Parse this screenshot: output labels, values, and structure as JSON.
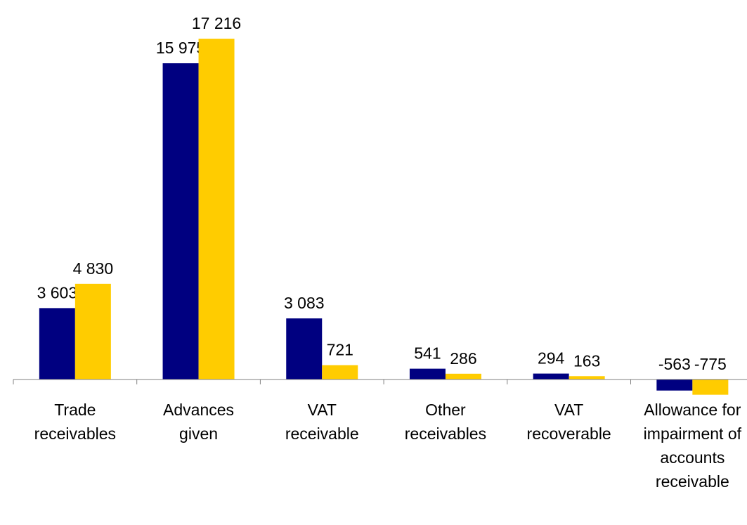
{
  "chart_data": {
    "type": "bar",
    "categories": [
      "Trade receivables",
      "Advances given",
      "VAT receivable",
      "Other receivables",
      "VAT recoverable",
      "Allowance for impairment of accounts receivable"
    ],
    "series": [
      {
        "color": "#000080",
        "values": [
          3603,
          15975,
          3083,
          541,
          294,
          -563
        ],
        "value_labels": [
          "3 603",
          "15 975",
          "3 083",
          "541",
          "294",
          "-563"
        ]
      },
      {
        "color": "#ffcc00",
        "values": [
          4830,
          17216,
          721,
          286,
          163,
          -775
        ],
        "value_labels": [
          "4 830",
          "17 216",
          "721",
          "286",
          "163",
          "-775"
        ]
      }
    ],
    "ylim": [
      -1000,
      18000
    ]
  }
}
